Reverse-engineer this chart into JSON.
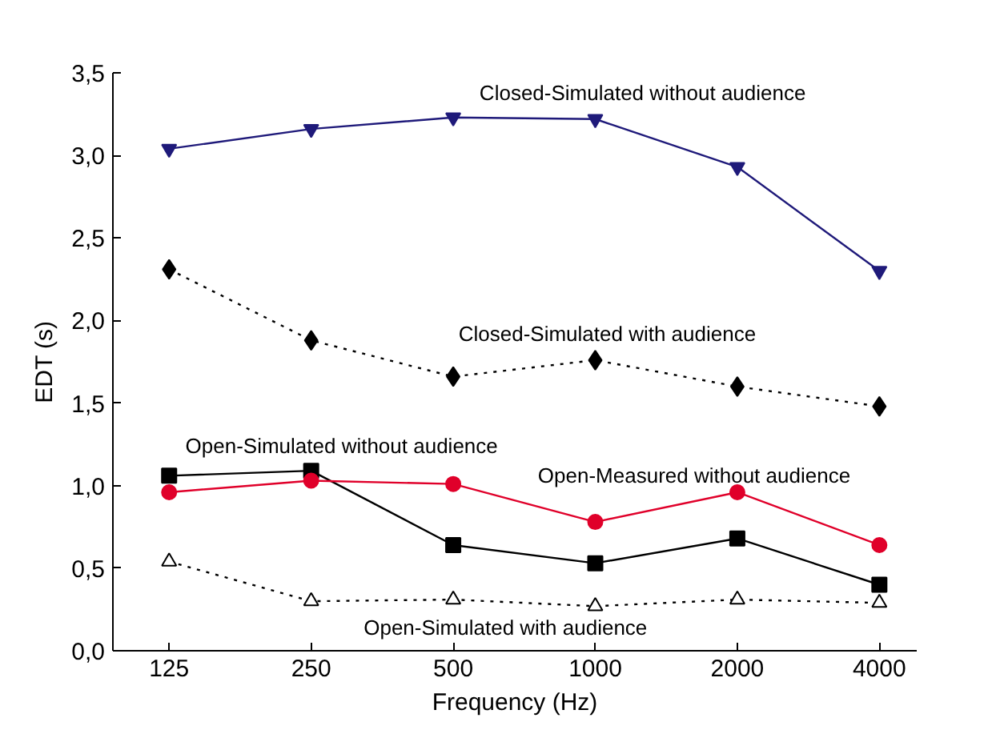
{
  "chart_data": {
    "type": "line",
    "xlabel": "Frequency (Hz)",
    "ylabel": "EDT (s)",
    "log": "x",
    "x": [
      125,
      250,
      500,
      1000,
      2000,
      4000
    ],
    "xlim": [
      95,
      4800
    ],
    "xticks": [
      125,
      250,
      500,
      1000,
      2000,
      4000
    ],
    "ylim": [
      0,
      3.5
    ],
    "yticks": [
      {
        "value": 0,
        "label": "0,0"
      },
      {
        "value": 0.5,
        "label": "0,5"
      },
      {
        "value": 1,
        "label": "1,0"
      },
      {
        "value": 1.5,
        "label": "1,5"
      },
      {
        "value": 2,
        "label": "2,0"
      },
      {
        "value": 2.5,
        "label": "2,5"
      },
      {
        "value": 3,
        "label": "3,0"
      },
      {
        "value": 3.5,
        "label": "3,5"
      }
    ],
    "grid": false,
    "series": [
      {
        "name": "Closed-Simulated without audience",
        "color": "#1f1a7a",
        "marker": "triangle-down",
        "line_style": "solid",
        "values": [
          3.04,
          3.16,
          3.23,
          3.22,
          2.93,
          2.3
        ]
      },
      {
        "name": "Closed-Simulated with audience",
        "color": "#000000",
        "marker": "diamond",
        "line_style": "dotted",
        "values": [
          2.31,
          1.88,
          1.66,
          1.76,
          1.6,
          1.48
        ]
      },
      {
        "name": "Open-Simulated without audience",
        "color": "#000000",
        "marker": "square",
        "line_style": "solid",
        "values": [
          1.06,
          1.09,
          0.64,
          0.53,
          0.68,
          0.4
        ]
      },
      {
        "name": "Open-Measured without audience",
        "color": "#e0002a",
        "marker": "circle",
        "line_style": "solid",
        "values": [
          0.96,
          1.03,
          1.01,
          0.78,
          0.96,
          0.64
        ]
      },
      {
        "name": "Open-Simulated with audience",
        "color": "#000000",
        "marker": "triangle",
        "line_style": "dotted",
        "values": [
          0.54,
          0.3,
          0.31,
          0.27,
          0.31,
          0.29
        ]
      }
    ]
  }
}
